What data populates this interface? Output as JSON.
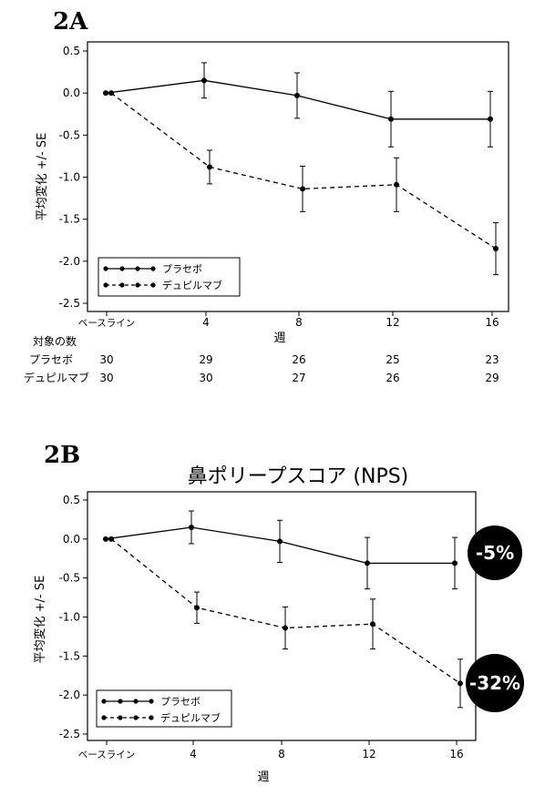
{
  "x_categories": [
    "ベースライン",
    "4",
    "8",
    "12",
    "16"
  ],
  "y_ticks": [
    "0.5",
    "0.0",
    "-0.5",
    "-1.0",
    "-1.5",
    "-2.0",
    "-2.5"
  ],
  "counts": {
    "header": "対象の数",
    "rows": [
      {
        "label": "プラセボ",
        "values": [
          "30",
          "29",
          "26",
          "25",
          "23"
        ]
      },
      {
        "label": "デュピルマブ",
        "values": [
          "30",
          "30",
          "27",
          "26",
          "29"
        ]
      }
    ]
  },
  "chart_data": [
    {
      "type": "line",
      "panel_label": "2A",
      "title": "",
      "xlabel": "週",
      "ylabel": "平均変化 +/- SE",
      "ylim": [
        -2.5,
        0.5
      ],
      "grid": false,
      "legend_position": "bottom-left",
      "x": [
        "ベースライン",
        "4",
        "8",
        "12",
        "16"
      ],
      "series": [
        {
          "name": "プラセボ",
          "line_style": "solid",
          "values": [
            0.0,
            0.15,
            -0.03,
            -0.31,
            -0.31
          ],
          "error": [
            0.0,
            0.21,
            0.27,
            0.33,
            0.33
          ]
        },
        {
          "name": "デュピルマブ",
          "line_style": "dashed",
          "values": [
            0.0,
            -0.88,
            -1.14,
            -1.09,
            -1.85
          ],
          "error": [
            0.0,
            0.2,
            0.27,
            0.32,
            0.31
          ]
        }
      ]
    },
    {
      "type": "line",
      "panel_label": "2B",
      "title": "鼻ポリープスコア (NPS)",
      "xlabel": "週",
      "ylabel": "平均変化 +/- SE",
      "ylim": [
        -2.5,
        0.5
      ],
      "grid": false,
      "legend_position": "bottom-left",
      "x": [
        "ベースライン",
        "4",
        "8",
        "12",
        "16"
      ],
      "series": [
        {
          "name": "プラセボ",
          "line_style": "solid",
          "values": [
            0.0,
            0.15,
            -0.03,
            -0.31,
            -0.31
          ],
          "error": [
            0.0,
            0.21,
            0.27,
            0.33,
            0.33
          ]
        },
        {
          "name": "デュピルマブ",
          "line_style": "dashed",
          "values": [
            0.0,
            -0.88,
            -1.14,
            -1.09,
            -1.85
          ],
          "error": [
            0.0,
            0.2,
            0.27,
            0.32,
            0.31
          ]
        }
      ],
      "annotations": [
        "-5%",
        "-32%"
      ]
    }
  ],
  "colors": {
    "ink": "#000000",
    "badge_bg": "#000000",
    "badge_text": "#ffffff"
  }
}
